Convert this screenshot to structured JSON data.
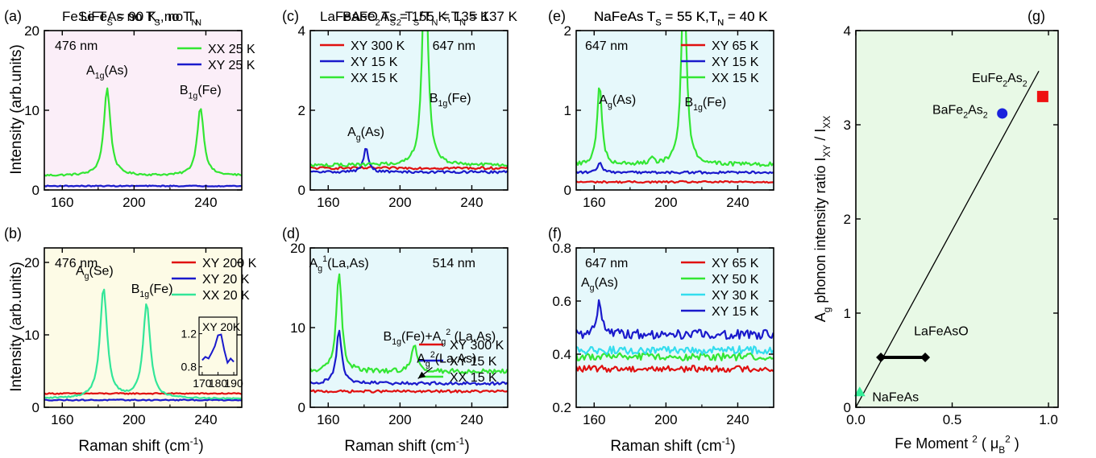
{
  "figure": {
    "ylabel_left_main": "Intensity (arb.units)",
    "xlabel_main": "Raman shift (cm",
    "xlabel_sup": "-1",
    "xlabel_close": ")"
  },
  "chart_data": [
    {
      "id": "a",
      "type": "line",
      "panel_label": "(a)",
      "bg": "#fbeef8",
      "title": [
        {
          "t": "LiFeAs no T"
        },
        {
          "t": "S",
          "sub": true
        },
        {
          "t": ", no T"
        },
        {
          "t": "N",
          "sub": true
        }
      ],
      "xlim": [
        150,
        260
      ],
      "ylim": [
        0,
        20
      ],
      "xticks": [
        160,
        200,
        240
      ],
      "yticks": [
        0,
        10,
        20
      ],
      "xminor": [
        180,
        220
      ],
      "ylabel": "Intensity (arb.units)",
      "series": [
        {
          "name": "XX 25 K",
          "color": "#33e633",
          "baseline": 1.8,
          "noise": 0.12,
          "peaks": [
            [
              185,
              11.0,
              2.2
            ],
            [
              237,
              8.6,
              2.2
            ]
          ]
        },
        {
          "name": "XY 25 K",
          "color": "#1a1acc",
          "baseline": 0.5,
          "noise": 0.06,
          "peaks": []
        }
      ],
      "wavelength": "476 nm",
      "annotations": [
        {
          "parts": [
            {
              "t": "A"
            },
            {
              "t": "1g",
              "sub": true
            },
            {
              "t": "(As)"
            }
          ],
          "x": 185,
          "y": 14.5
        },
        {
          "parts": [
            {
              "t": "B"
            },
            {
              "t": "1g",
              "sub": true
            },
            {
              "t": "(Fe)"
            }
          ],
          "x": 237,
          "y": 12.0
        }
      ]
    },
    {
      "id": "b",
      "type": "line",
      "panel_label": "(b)",
      "bg": "#fdfbe6",
      "title": [
        {
          "t": "FeSe T"
        },
        {
          "t": "S",
          "sub": true
        },
        {
          "t": " = 90 K, no T"
        },
        {
          "t": "N",
          "sub": true
        }
      ],
      "xlim": [
        150,
        260
      ],
      "ylim": [
        0,
        22
      ],
      "xticks": [
        160,
        200,
        240
      ],
      "yticks": [
        0,
        10,
        20
      ],
      "xminor": [
        180,
        220
      ],
      "ylabel": "Intensity (arb.units)",
      "xlabel": true,
      "series": [
        {
          "name": "XY 200 K",
          "color": "#e01010",
          "baseline": 1.9,
          "noise": 0.08,
          "peaks": []
        },
        {
          "name": "XY   20 K",
          "color": "#1a1acc",
          "baseline": 1.0,
          "noise": 0.07,
          "peaks": []
        },
        {
          "name": "XX   20 K",
          "color": "#33e699",
          "baseline": 1.2,
          "noise": 0.1,
          "peaks": [
            [
              183,
              15.2,
              2.4
            ],
            [
              207,
              13.0,
              2.4
            ]
          ]
        }
      ],
      "wavelength": "476 nm",
      "annotations": [
        {
          "parts": [
            {
              "t": "A"
            },
            {
              "t": "g",
              "sub": true
            },
            {
              "t": "(Se)"
            }
          ],
          "x": 178,
          "y": 18.3
        },
        {
          "parts": [
            {
              "t": "B"
            },
            {
              "t": "1g",
              "sub": true
            },
            {
              "t": "(Fe)"
            }
          ],
          "x": 210,
          "y": 15.8
        }
      ],
      "inset": {
        "label": "XY 20K",
        "xlim": [
          168,
          192
        ],
        "ylim": [
          0.7,
          1.4
        ],
        "xticks": [
          170,
          180,
          190
        ],
        "yticks": [
          0.8,
          1.2
        ],
        "x": [
          170,
          172,
          174,
          176,
          178,
          180,
          182,
          184,
          186,
          188,
          190
        ],
        "y": [
          0.88,
          0.92,
          0.9,
          0.97,
          1.05,
          1.18,
          1.19,
          1.0,
          0.85,
          0.9,
          0.86
        ]
      }
    },
    {
      "id": "c",
      "type": "line",
      "panel_label": "(c)",
      "bg": "#e6f8fb",
      "title": [
        {
          "t": "BaFe"
        },
        {
          "t": "2",
          "sub": true
        },
        {
          "t": "As"
        },
        {
          "t": "2",
          "sub": true
        },
        {
          "t": " T"
        },
        {
          "t": "S",
          "sub": true
        },
        {
          "t": "/T"
        },
        {
          "t": "N",
          "sub": true
        },
        {
          "t": " = 135 K"
        }
      ],
      "xlim": [
        150,
        260
      ],
      "ylim": [
        0,
        4
      ],
      "xticks": [
        160,
        200,
        240
      ],
      "yticks": [
        0,
        2,
        4
      ],
      "xminor": [
        180,
        220
      ],
      "series": [
        {
          "name": "XY 300 K",
          "color": "#e01010",
          "baseline": 0.55,
          "noise": 0.03,
          "peaks": []
        },
        {
          "name": "XY   15 K",
          "color": "#1a1acc",
          "baseline": 0.45,
          "noise": 0.03,
          "peaks": [
            [
              181,
              0.6,
              1.6
            ]
          ]
        },
        {
          "name": "XX   15 K",
          "color": "#33e633",
          "baseline": 0.62,
          "noise": 0.04,
          "peaks": [
            [
              214,
              5.5,
              1.8
            ]
          ]
        }
      ],
      "wavelength": "647 nm",
      "annotations": [
        {
          "parts": [
            {
              "t": "A"
            },
            {
              "t": "g",
              "sub": true
            },
            {
              "t": "(As)"
            }
          ],
          "x": 181,
          "y": 1.35
        },
        {
          "parts": [
            {
              "t": "B"
            },
            {
              "t": "1g",
              "sub": true
            },
            {
              "t": "(Fe)"
            }
          ],
          "x": 228,
          "y": 2.2
        }
      ]
    },
    {
      "id": "d",
      "type": "line",
      "panel_label": "(d)",
      "bg": "#e6f8fb",
      "title": [
        {
          "t": "LaFeAsO T"
        },
        {
          "t": "S",
          "sub": true
        },
        {
          "t": " = 155 K,T"
        },
        {
          "t": "N",
          "sub": true
        },
        {
          "t": " = 137 K"
        }
      ],
      "xlim": [
        150,
        260
      ],
      "ylim": [
        0,
        20
      ],
      "xticks": [
        160,
        200,
        240
      ],
      "yticks": [
        0,
        10,
        20
      ],
      "xminor": [
        180,
        220
      ],
      "xlabel": true,
      "series": [
        {
          "name": "XY 300 K",
          "color": "#e01010",
          "baseline": 2.0,
          "noise": 0.15,
          "peaks": []
        },
        {
          "name": "XY   15 K",
          "color": "#1a1acc",
          "baseline": 3.0,
          "noise": 0.2,
          "peaks": [
            [
              166,
              6.5,
              1.8
            ]
          ]
        },
        {
          "name": "XX   15 K",
          "color": "#33e633",
          "baseline": 4.5,
          "noise": 0.3,
          "peaks": [
            [
              166,
              12.5,
              1.8
            ],
            [
              208,
              3.2,
              1.8
            ]
          ]
        }
      ],
      "wavelength": "514 nm",
      "annotations": [
        {
          "parts": [
            {
              "t": "A"
            },
            {
              "t": "g",
              "sub": true
            },
            {
              "t": "1",
              "sup": true
            },
            {
              "t": "(La,As)"
            }
          ],
          "x": 166,
          "y": 17.6
        },
        {
          "parts": [
            {
              "t": "B"
            },
            {
              "t": "1g",
              "sub": true
            },
            {
              "t": "(Fe)+A"
            },
            {
              "t": "g",
              "sub": true
            },
            {
              "t": "2",
              "sup": true
            },
            {
              "t": " (La,As)"
            }
          ],
          "x": 222,
          "y": 8.4
        },
        {
          "parts": [
            {
              "t": "A"
            },
            {
              "t": "g",
              "sub": true
            },
            {
              "t": "2",
              "sup": true
            },
            {
              "t": "(La,As)"
            }
          ],
          "x": 226,
          "y": 5.6
        }
      ],
      "arrow": {
        "from": [
          218,
          5.0
        ],
        "to": [
          210,
          3.6
        ]
      }
    },
    {
      "id": "e",
      "type": "line",
      "panel_label": "(e)",
      "bg": "#e6f8fb",
      "title": [
        {
          "t": "NaFeAs T"
        },
        {
          "t": "S",
          "sub": true
        },
        {
          "t": " = 55 K,T"
        },
        {
          "t": "N",
          "sub": true
        },
        {
          "t": " = 40 K"
        }
      ],
      "xlim": [
        150,
        260
      ],
      "ylim": [
        0,
        2
      ],
      "xticks": [
        160,
        200,
        240
      ],
      "yticks": [
        0,
        1,
        2
      ],
      "xminor": [
        180,
        220
      ],
      "series": [
        {
          "name": "XY 65 K",
          "color": "#e01010",
          "baseline": 0.1,
          "noise": 0.012,
          "peaks": []
        },
        {
          "name": "XY 15 K",
          "color": "#1a1acc",
          "baseline": 0.22,
          "noise": 0.015,
          "peaks": [
            [
              163,
              0.12,
              1.4
            ]
          ]
        },
        {
          "name": "XX 15 K",
          "color": "#33e633",
          "baseline": 0.32,
          "noise": 0.025,
          "peaks": [
            [
              163,
              1.02,
              1.5
            ],
            [
              210,
              2.4,
              1.7
            ],
            [
              192,
              0.06,
              1.5
            ]
          ]
        }
      ],
      "wavelength": "647 nm",
      "annotations": [
        {
          "parts": [
            {
              "t": "A"
            },
            {
              "t": "g",
              "sub": true
            },
            {
              "t": "(As)"
            }
          ],
          "x": 173,
          "y": 1.08
        },
        {
          "parts": [
            {
              "t": "B"
            },
            {
              "t": "1g",
              "sub": true
            },
            {
              "t": "(Fe)"
            }
          ],
          "x": 222,
          "y": 1.05
        }
      ]
    },
    {
      "id": "f",
      "type": "line",
      "panel_label": "(f)",
      "bg": "#e6f8fb",
      "title": [
        {
          "t": "NaFeAs T"
        },
        {
          "t": "S",
          "sub": true
        },
        {
          "t": " = 55 K,T"
        },
        {
          "t": "N",
          "sub": true
        },
        {
          "t": " = 40 K"
        }
      ],
      "xlim": [
        150,
        260
      ],
      "ylim": [
        0.2,
        0.8
      ],
      "xticks": [
        160,
        200,
        240
      ],
      "yticks": [
        0.2,
        0.4,
        0.6,
        0.8
      ],
      "xminor": [
        180,
        220
      ],
      "xlabel": true,
      "series": [
        {
          "name": "XY 65 K",
          "color": "#e01010",
          "baseline": 0.345,
          "noise": 0.012,
          "peaks": []
        },
        {
          "name": "XY 50 K",
          "color": "#33e633",
          "baseline": 0.39,
          "noise": 0.014,
          "peaks": []
        },
        {
          "name": "XY 30 K",
          "color": "#33ddee",
          "baseline": 0.415,
          "noise": 0.015,
          "peaks": []
        },
        {
          "name": "XY 15 K",
          "color": "#1a1acc",
          "baseline": 0.475,
          "noise": 0.018,
          "peaks": [
            [
              163,
              0.13,
              1.4
            ]
          ]
        }
      ],
      "wavelength": "647 nm",
      "annotations": [
        {
          "parts": [
            {
              "t": "A"
            },
            {
              "t": "g",
              "sub": true
            },
            {
              "t": "(As)"
            }
          ],
          "x": 163,
          "y": 0.655
        }
      ]
    },
    {
      "id": "g",
      "type": "scatter",
      "panel_label": "(g)",
      "bg": "#e8f9e6",
      "xlim": [
        0,
        1.05
      ],
      "ylim": [
        0,
        4
      ],
      "xticks": [
        0,
        0.5,
        1
      ],
      "yticks": [
        0,
        1,
        2,
        3,
        4
      ],
      "xticklabels": [
        "0.0",
        "0.5",
        "1.0"
      ],
      "ylabel_parts": [
        {
          "t": "A"
        },
        {
          "t": "g",
          "sub": true
        },
        {
          "t": " phonon intensity ratio I"
        },
        {
          "t": "XY",
          "sub": true
        },
        {
          "t": " / I"
        },
        {
          "t": "XX",
          "sub": true
        }
      ],
      "xlabel_parts": [
        {
          "t": "Fe Moment "
        },
        {
          "t": "2",
          "sup": true
        },
        {
          "t": "  ( μ"
        },
        {
          "t": "B",
          "sub": true
        },
        {
          "t": "2",
          "sup": true
        },
        {
          "t": " )"
        }
      ],
      "fit_line": [
        [
          0.0,
          0.0
        ],
        [
          0.95,
          3.57
        ]
      ],
      "points": [
        {
          "material": [
            {
              "t": "EuFe"
            },
            {
              "t": "2",
              "sub": true
            },
            {
              "t": "As"
            },
            {
              "t": "2",
              "sub": true
            }
          ],
          "x": 0.97,
          "y": 3.3,
          "marker": "square",
          "color": "#ee1111"
        },
        {
          "material": [
            {
              "t": "BaFe"
            },
            {
              "t": "2",
              "sub": true
            },
            {
              "t": "As"
            },
            {
              "t": "2",
              "sub": true
            }
          ],
          "x": 0.76,
          "y": 3.12,
          "marker": "circle",
          "color": "#1a22dd"
        },
        {
          "material": [
            {
              "t": "LaFeAsO"
            }
          ],
          "xrange": [
            0.13,
            0.36
          ],
          "y": 0.53,
          "marker": "diamond",
          "color": "#000000"
        },
        {
          "material": [
            {
              "t": "NaFeAs"
            }
          ],
          "x": 0.02,
          "y": 0.16,
          "marker": "triangle",
          "color": "#33ee99"
        }
      ]
    }
  ]
}
